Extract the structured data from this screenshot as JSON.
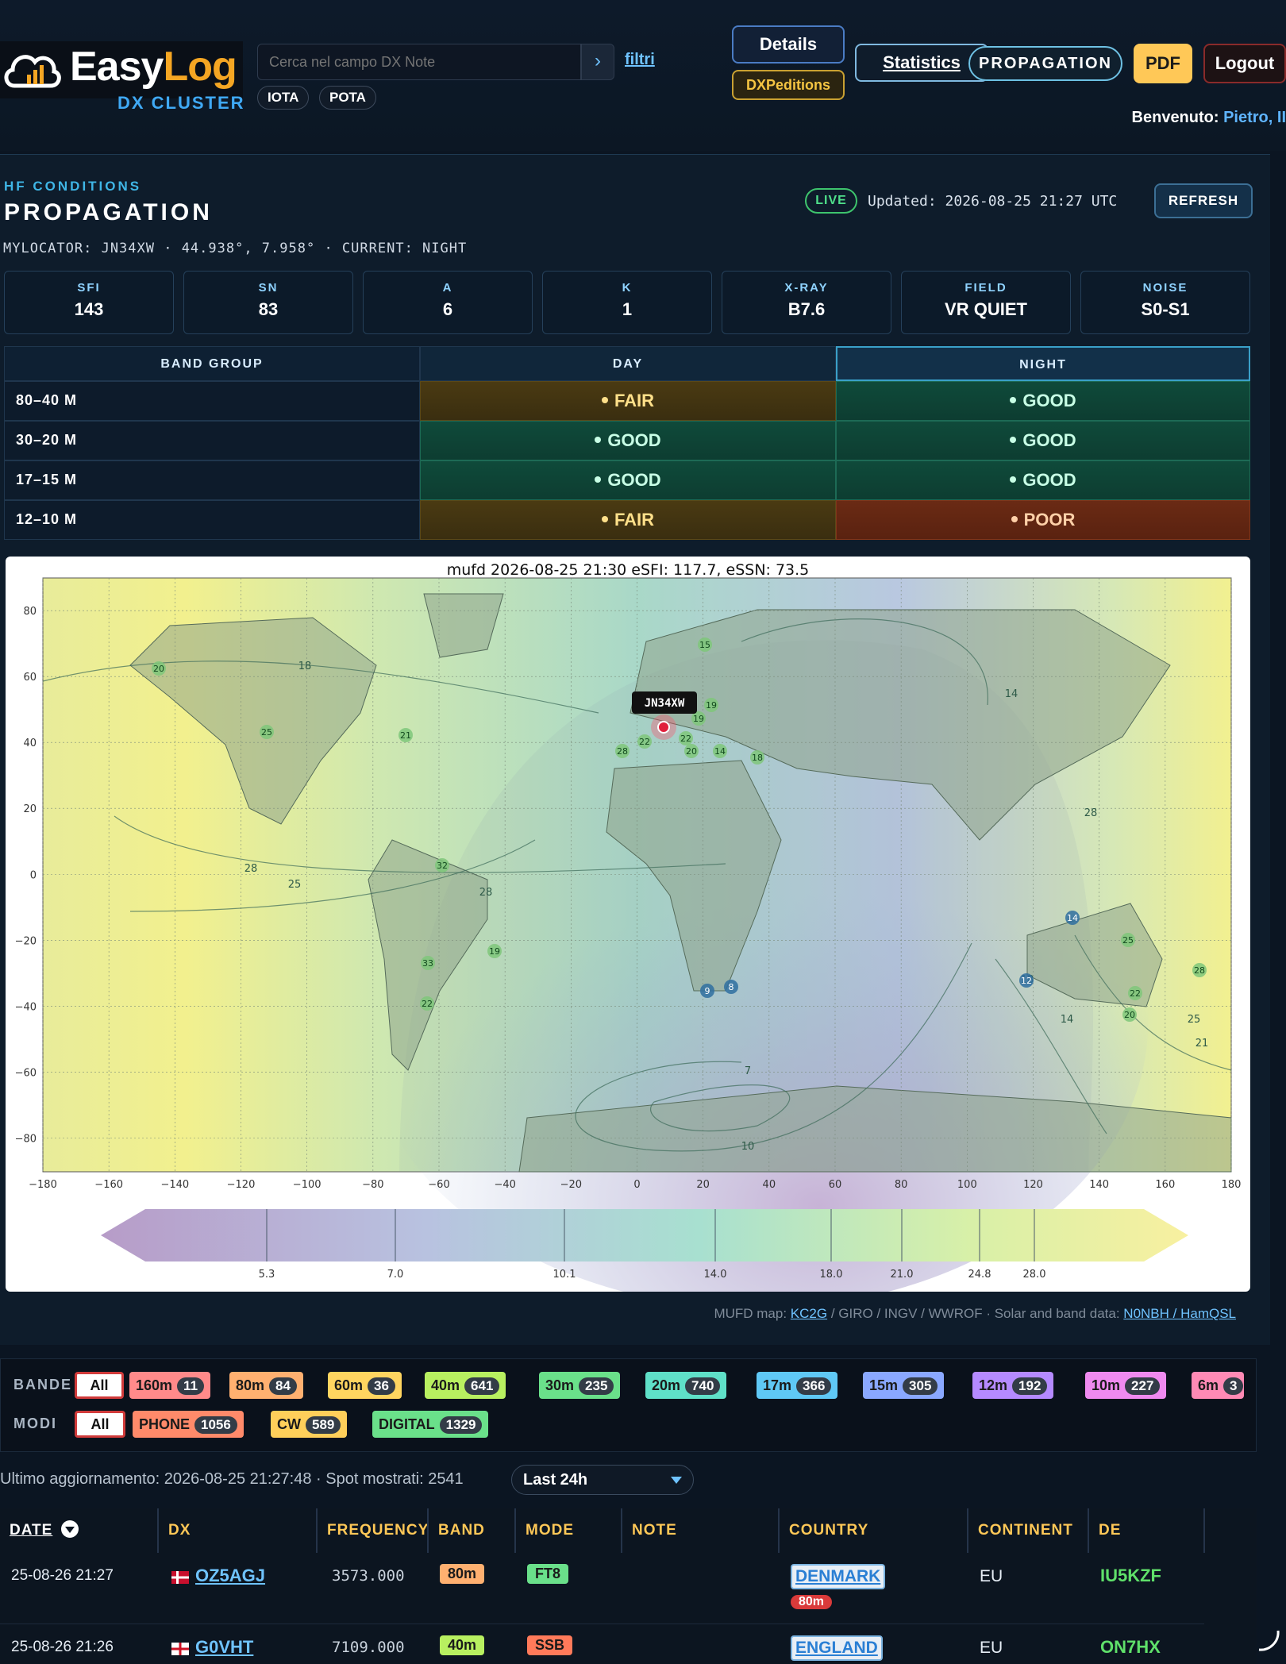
{
  "header": {
    "logo_easy": "Easy",
    "logo_log": "Log",
    "logo_sub": "DX CLUSTER",
    "search_placeholder": "Cerca nel campo DX Note",
    "search_go": "›",
    "filtri": "filtri",
    "tags": [
      "IOTA",
      "POTA"
    ],
    "buttons": {
      "details": "Details",
      "dxpeditions": "DXPeditions",
      "statistics": "Statistics",
      "propagation": "PROPAGATION",
      "pdf": "PDF",
      "logout": "Logout"
    },
    "welcome_label": "Benvenuto:",
    "welcome_user": "Pietro, II"
  },
  "propagation": {
    "section_label": "HF CONDITIONS",
    "title": "PROPAGATION",
    "live": "LIVE",
    "updated": "Updated: 2026-08-25 21:27 UTC",
    "refresh": "REFRESH",
    "locator": "MYLOCATOR: JN34XW · 44.938°, 7.958° · CURRENT: NIGHT",
    "stats": [
      {
        "key": "SFI",
        "value": "143"
      },
      {
        "key": "SN",
        "value": "83"
      },
      {
        "key": "A",
        "value": "6"
      },
      {
        "key": "K",
        "value": "1"
      },
      {
        "key": "X-RAY",
        "value": "B7.6"
      },
      {
        "key": "FIELD",
        "value": "VR QUIET"
      },
      {
        "key": "NOISE",
        "value": "S0-S1"
      }
    ],
    "band_table": {
      "headers": [
        "BAND GROUP",
        "DAY",
        "NIGHT"
      ],
      "rows": [
        {
          "band": "80–40 M",
          "day": "FAIR",
          "night": "GOOD"
        },
        {
          "band": "30–20 M",
          "day": "GOOD",
          "night": "GOOD"
        },
        {
          "band": "17–15 M",
          "day": "GOOD",
          "night": "GOOD"
        },
        {
          "band": "12–10 M",
          "day": "FAIR",
          "night": "POOR"
        }
      ]
    },
    "map": {
      "title": "mufd 2026-08-25 21:30 eSFI: 117.7, eSSN: 73.5",
      "marker_label": "JN34XW",
      "x_ticks": [
        "−180",
        "−160",
        "−140",
        "−120",
        "−100",
        "−80",
        "−60",
        "−40",
        "−20",
        "0",
        "20",
        "40",
        "60",
        "80",
        "100",
        "120",
        "140",
        "160",
        "180"
      ],
      "y_ticks": [
        "80",
        "60",
        "40",
        "20",
        "0",
        "−20",
        "−40",
        "−60",
        "−80"
      ],
      "colorbar_ticks": [
        "5.3",
        "7.0",
        "10.1",
        "14.0",
        "18.0",
        "21.0",
        "24.8",
        "28.0"
      ],
      "contour_labels": [
        "18",
        "28",
        "25",
        "28",
        "14",
        "28",
        "25",
        "21",
        "14",
        "18",
        "7",
        "10"
      ],
      "stations": [
        "20",
        "25",
        "21",
        "15",
        "19",
        "19",
        "22",
        "22",
        "28",
        "20",
        "14",
        "18",
        "32",
        "33",
        "19",
        "22",
        "9",
        "8",
        "14",
        "25",
        "28",
        "12",
        "22",
        "20"
      ]
    },
    "attribution_prefix": "MUFD map:",
    "attribution_kc2g": "KC2G",
    "attribution_mid": "/ GIRO / INGV / WWROF · Solar and band data:",
    "attribution_hamqsl": "N0NBH / HamQSL"
  },
  "filters": {
    "bande_label": "BANDE",
    "modi_label": "MODI",
    "all_label": "All",
    "bands": [
      {
        "label": "160m",
        "count": "11",
        "color": "#ff8a8a"
      },
      {
        "label": "80m",
        "count": "84",
        "color": "#ffb070"
      },
      {
        "label": "60m",
        "count": "36",
        "color": "#ffd560"
      },
      {
        "label": "40m",
        "count": "641",
        "color": "#b8f060"
      },
      {
        "label": "30m",
        "count": "235",
        "color": "#6ae08a"
      },
      {
        "label": "20m",
        "count": "740",
        "color": "#5fe0c8"
      },
      {
        "label": "17m",
        "count": "366",
        "color": "#5fc8f5"
      },
      {
        "label": "15m",
        "count": "305",
        "color": "#8aa8ff"
      },
      {
        "label": "12m",
        "count": "192",
        "color": "#b58aff"
      },
      {
        "label": "10m",
        "count": "227",
        "color": "#f08af0"
      },
      {
        "label": "6m",
        "count": "3",
        "color": "#ff8ab5"
      }
    ],
    "modes": [
      {
        "label": "PHONE",
        "count": "1056",
        "color": "#ff8a6a"
      },
      {
        "label": "CW",
        "count": "589",
        "color": "#ffcf5a"
      },
      {
        "label": "DIGITAL",
        "count": "1329",
        "color": "#6ae08a"
      }
    ]
  },
  "status": {
    "last_update": "Ultimo aggiornamento: 2026-08-25 21:27:48 · Spot mostrati: 2541",
    "range": "Last 24h"
  },
  "spots": {
    "columns": [
      "DATE",
      "DX",
      "FREQUENCY",
      "BAND",
      "MODE",
      "NOTE",
      "COUNTRY",
      "CONTINENT",
      "DE"
    ],
    "rows": [
      {
        "date": "25-08-26 21:27",
        "dx": "OZ5AGJ",
        "freq": "3573.000",
        "band": "80m",
        "band_color": "#ffb070",
        "mode": "FT8",
        "mode_color": "#6ae08a",
        "note": "",
        "country": "DENMARK",
        "country_band": "80m",
        "continent": "EU",
        "de": "IU5KZF"
      },
      {
        "date": "25-08-26 21:26",
        "dx": "G0VHT",
        "freq": "7109.000",
        "band": "40m",
        "band_color": "#b8f060",
        "mode": "SSB",
        "mode_color": "#ff7a5a",
        "note": "",
        "country": "ENGLAND",
        "country_band": "",
        "continent": "EU",
        "de": "ON7HX"
      }
    ]
  }
}
